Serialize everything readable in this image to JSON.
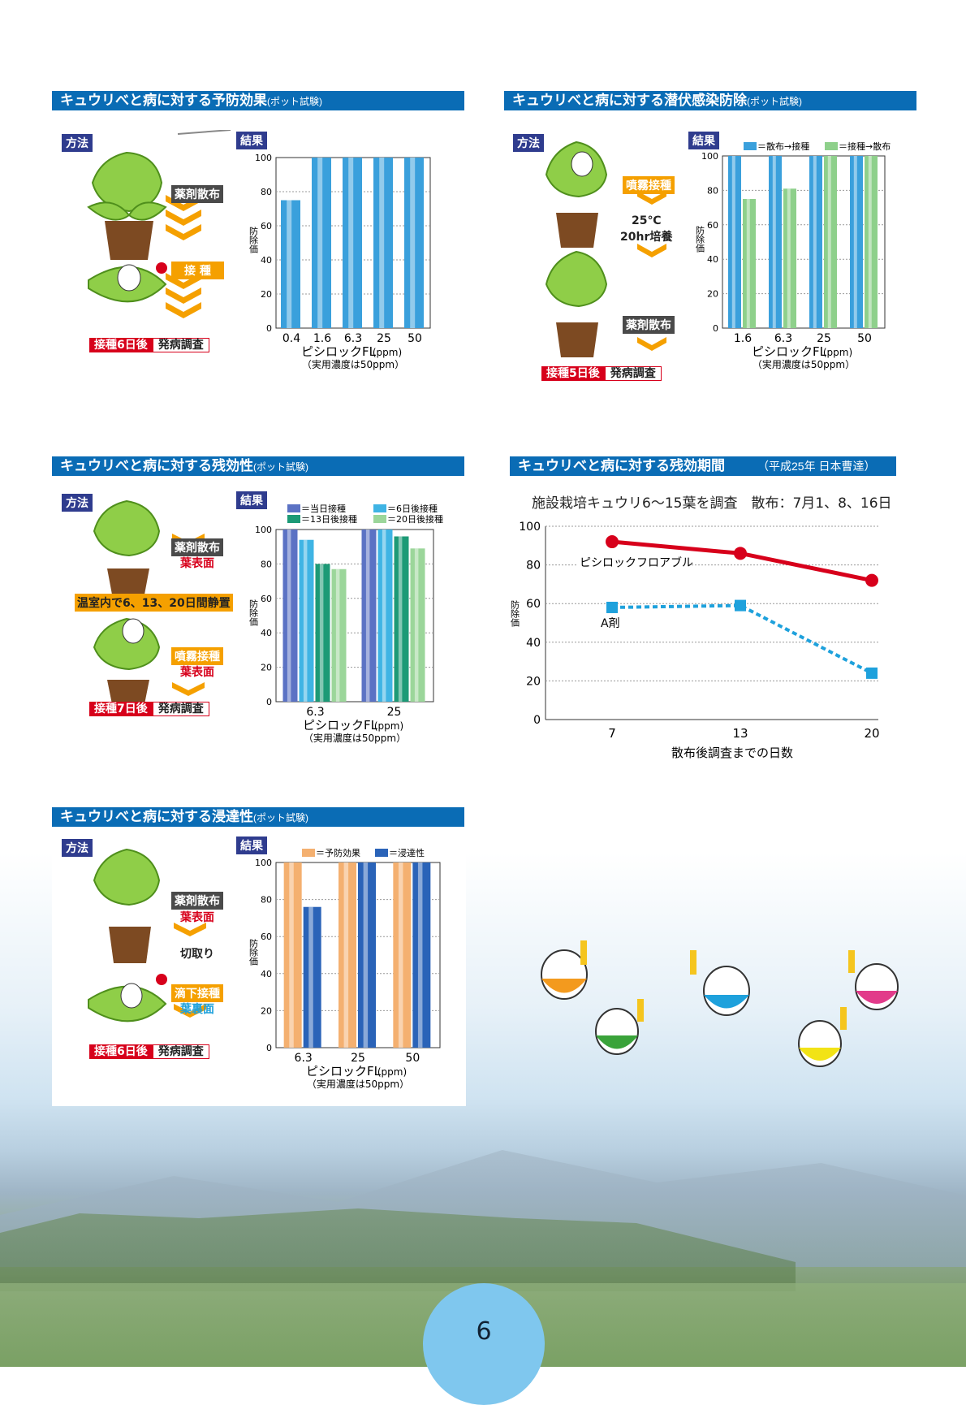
{
  "page_number": "6",
  "colors": {
    "header_blue": "#0a6cb5",
    "tag_navy": "#2f3c8e",
    "red": "#d7001b",
    "orange": "#f5a000",
    "bar_blue": "#3aa0dc",
    "bar_green": "#8ed08b",
    "line_red": "#d7001b",
    "line_blue": "#1ea1dc"
  },
  "sections": {
    "s1": {
      "title": "キュウリべと病に対する予防効果",
      "sub": "(ポット試験)",
      "method": "方法",
      "result": "結果",
      "steps": [
        "薬剤散布",
        "接 種"
      ],
      "badge_red": "接種6日後",
      "badge_white": "発病調査"
    },
    "s2": {
      "title": "キュウリべと病に対する潜伏感染防除",
      "sub": "(ポット試験)",
      "method": "方法",
      "result": "結果",
      "steps": [
        "噴霧接種",
        "25℃",
        "20hr培養",
        "薬剤散布"
      ],
      "badge_red": "接種5日後",
      "badge_white": "発病調査"
    },
    "s3": {
      "title": "キュウリべと病に対する残効性",
      "sub": "(ポット試験)",
      "method": "方法",
      "result": "結果",
      "steps": [
        "薬剤散布",
        "葉表面",
        "温室内で6、13、20日間静置",
        "噴霧接種",
        "葉表面"
      ],
      "badge_red": "接種7日後",
      "badge_white": "発病調査"
    },
    "s4": {
      "title": "キュウリべと病に対する残効期間",
      "sub": "（平成25年 日本曹達）",
      "note": "施設栽培キュウリ6〜15葉を調査　散布：7月1、8、16日"
    },
    "s5": {
      "title": "キュウリべと病に対する浸達性",
      "sub": "(ポット試験)",
      "method": "方法",
      "result": "結果",
      "steps": [
        "薬剤散布",
        "葉表面",
        "切取り",
        "滴下接種",
        "葉裏面"
      ],
      "badge_red": "接種6日後",
      "badge_white": "発病調査"
    }
  },
  "chart_data": [
    {
      "type": "bar",
      "categories": [
        "0.4",
        "1.6",
        "6.3",
        "25",
        "50"
      ],
      "series": [
        {
          "values": [
            75,
            100,
            100,
            100,
            100
          ]
        }
      ],
      "xlabel": "ピシロックFL",
      "xlabel_unit": "(ppm)",
      "xnote": "（実用濃度は50ppm）",
      "ylabel": "防除価",
      "ylim": [
        0,
        100
      ],
      "yticks": [
        0,
        20,
        40,
        60,
        80,
        100
      ]
    },
    {
      "type": "bar",
      "categories": [
        "1.6",
        "6.3",
        "25",
        "50"
      ],
      "series": [
        {
          "name": "＝散布→接種",
          "values": [
            100,
            100,
            100,
            100
          ]
        },
        {
          "name": "＝接種→散布",
          "values": [
            75,
            81,
            100,
            100
          ]
        }
      ],
      "xlabel": "ピシロックFL",
      "xlabel_unit": "(ppm)",
      "xnote": "（実用濃度は50ppm）",
      "ylabel": "防除価",
      "ylim": [
        0,
        100
      ],
      "yticks": [
        0,
        20,
        40,
        60,
        80,
        100
      ]
    },
    {
      "type": "bar",
      "categories": [
        "6.3",
        "25"
      ],
      "series": [
        {
          "name": "＝当日接種",
          "values": [
            100,
            100
          ]
        },
        {
          "name": "＝6日後接種",
          "values": [
            94,
            100
          ]
        },
        {
          "name": "＝13日後接種",
          "values": [
            80,
            96
          ]
        },
        {
          "name": "＝20日後接種",
          "values": [
            77,
            89
          ]
        }
      ],
      "xlabel": "ピシロックFL",
      "xlabel_unit": "(ppm)",
      "xnote": "（実用濃度は50ppm）",
      "ylabel": "防除価",
      "ylim": [
        0,
        100
      ],
      "yticks": [
        0,
        20,
        40,
        60,
        80,
        100
      ]
    },
    {
      "type": "line",
      "x": [
        "7",
        "13",
        "20"
      ],
      "series": [
        {
          "name": "ピシロックフロアブル",
          "values": [
            92,
            86,
            72
          ]
        },
        {
          "name": "A剤",
          "values": [
            58,
            59,
            24
          ]
        }
      ],
      "xlabel": "散布後調査までの日数",
      "ylabel": "防除価",
      "ylim": [
        0,
        100
      ],
      "yticks": [
        0,
        20,
        40,
        60,
        80,
        100
      ],
      "grid": true
    },
    {
      "type": "bar",
      "categories": [
        "6.3",
        "25",
        "50"
      ],
      "series": [
        {
          "name": "＝予防効果",
          "values": [
            100,
            100,
            100
          ]
        },
        {
          "name": "＝浸達性",
          "values": [
            76,
            100,
            100
          ]
        }
      ],
      "xlabel": "ピシロックFL",
      "xlabel_unit": "(ppm)",
      "xnote": "（実用濃度は50ppm）",
      "ylabel": "防除価",
      "ylim": [
        0,
        100
      ],
      "yticks": [
        0,
        20,
        40,
        60,
        80,
        100
      ]
    }
  ]
}
